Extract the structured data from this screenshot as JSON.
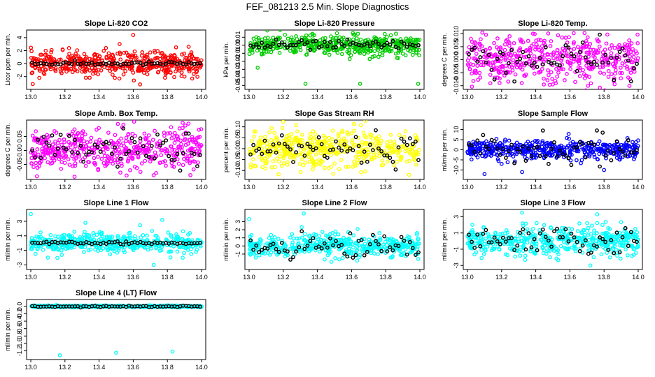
{
  "page_title": "FEF_081213  2.5 Min. Slope Diagnostics",
  "chart_data": [
    {
      "type": "scatter",
      "title": "Slope Li-820 CO2",
      "ylabel": "Licor ppm per min.",
      "color": "#ff0000",
      "xlim": [
        13.0,
        14.0
      ],
      "ylim": [
        -3.6,
        4.8
      ],
      "xticks": [
        "13.0",
        "13.2",
        "13.4",
        "13.6",
        "13.8",
        "14.0"
      ],
      "yticks": [
        {
          "v": -2,
          "label": "-2"
        },
        {
          "v": 0,
          "label": "0"
        },
        {
          "v": 2,
          "label": "2"
        },
        {
          "v": 4,
          "label": "4"
        }
      ],
      "spread": 0.9,
      "outliers": [
        {
          "x": 13.6,
          "y": 4.4
        },
        {
          "x": 13.52,
          "y": 3.0
        },
        {
          "x": 13.64,
          "y": -3.2
        },
        {
          "x": 13.05,
          "y": -2.2
        },
        {
          "x": 13.44,
          "y": 2.4
        }
      ],
      "black_spread": 0.15
    },
    {
      "type": "scatter",
      "title": "Slope Li-820 Pressure",
      "ylabel": "kPa per min.",
      "color": "#00cc00",
      "xlim": [
        13.0,
        14.0
      ],
      "ylim": [
        -0.052,
        0.016
      ],
      "xticks": [
        "13.0",
        "13.2",
        "13.4",
        "13.6",
        "13.8",
        "14.0"
      ],
      "yticks": [
        {
          "v": -0.05,
          "label": "-0.05"
        },
        {
          "v": -0.04,
          "label": "-0.04"
        },
        {
          "v": -0.03,
          "label": "-0.03"
        },
        {
          "v": -0.02,
          "label": "-0.02"
        },
        {
          "v": -0.01,
          "label": "-0.01"
        },
        {
          "v": 0,
          "label": "0.00"
        },
        {
          "v": 0.01,
          "label": "0.01"
        }
      ],
      "spread": 0.006,
      "outliers": [
        {
          "x": 13.33,
          "y": -0.048
        },
        {
          "x": 13.65,
          "y": -0.048
        },
        {
          "x": 13.99,
          "y": -0.048
        },
        {
          "x": 13.21,
          "y": 0.013
        },
        {
          "x": 13.05,
          "y": -0.028
        }
      ],
      "black_spread": 0.003
    },
    {
      "type": "scatter",
      "title": "Slope Li-820 Temp.",
      "ylabel": "degrees C per min.",
      "color": "#ff00ff",
      "xlim": [
        13.0,
        14.0
      ],
      "ylim": [
        -0.0105,
        0.0105
      ],
      "xticks": [
        "13.0",
        "13.2",
        "13.4",
        "13.6",
        "13.8",
        "14.0"
      ],
      "yticks": [
        {
          "v": -0.01,
          "label": "-0.010"
        },
        {
          "v": -0.005,
          "label": "-0.005"
        },
        {
          "v": 0,
          "label": "0.000"
        },
        {
          "v": 0.005,
          "label": "0.005"
        },
        {
          "v": 0.01,
          "label": "0.010"
        }
      ],
      "spread": 0.0045,
      "outliers": [],
      "black_spread": 0.0035
    },
    {
      "type": "scatter",
      "title": "Slope Amb. Box Temp.",
      "ylabel": "degrees C per min.",
      "color": "#ff00ff",
      "xlim": [
        13.0,
        14.0
      ],
      "ylim": [
        -0.095,
        0.1
      ],
      "xticks": [
        "13.0",
        "13.2",
        "13.4",
        "13.6",
        "13.8",
        "14.0"
      ],
      "yticks": [
        {
          "v": -0.05,
          "label": "-0.05"
        },
        {
          "v": 0,
          "label": "0.00"
        },
        {
          "v": 0.05,
          "label": "0.05"
        }
      ],
      "spread": 0.038,
      "outliers": [],
      "black_spread": 0.03
    },
    {
      "type": "scatter",
      "title": "Slope Gas Stream RH",
      "ylabel": "percent per min.",
      "color": "#ffff00",
      "xlim": [
        13.0,
        14.0
      ],
      "ylim": [
        -0.13,
        0.12
      ],
      "xticks": [
        "13.0",
        "13.2",
        "13.4",
        "13.6",
        "13.8",
        "14.0"
      ],
      "yticks": [
        {
          "v": -0.1,
          "label": "-0.10"
        },
        {
          "v": -0.05,
          "label": "-0.05"
        },
        {
          "v": 0,
          "label": "0.00"
        },
        {
          "v": 0.05,
          "label": "0.05"
        },
        {
          "v": 0.1,
          "label": "0.10"
        }
      ],
      "spread": 0.045,
      "outliers": [],
      "black_spread": 0.04
    },
    {
      "type": "scatter",
      "title": "Slope Sample Flow",
      "ylabel": "ml/min per min.",
      "color": "#0000ff",
      "xlim": [
        13.0,
        14.0
      ],
      "ylim": [
        -13.5,
        13.5
      ],
      "xticks": [
        "13.0",
        "13.2",
        "13.4",
        "13.6",
        "13.8",
        "14.0"
      ],
      "yticks": [
        {
          "v": -10,
          "label": "-10"
        },
        {
          "v": -5,
          "label": "-5"
        },
        {
          "v": 0,
          "label": "0"
        },
        {
          "v": 5,
          "label": "5"
        },
        {
          "v": 10,
          "label": "10"
        }
      ],
      "spread": 2.2,
      "outliers": [
        {
          "x": 13.1,
          "y": -12
        },
        {
          "x": 13.32,
          "y": -11
        },
        {
          "x": 13.8,
          "y": -10
        },
        {
          "x": 13.2,
          "y": -7
        }
      ],
      "black_spread": 4.0
    },
    {
      "type": "scatter",
      "title": "Slope Line 1 Flow",
      "ylabel": "ml/min per min.",
      "color": "#00ffff",
      "xlim": [
        13.0,
        14.0
      ],
      "ylim": [
        -3.3,
        4.3
      ],
      "xticks": [
        "13.0",
        "13.2",
        "13.4",
        "13.6",
        "13.8",
        "14.0"
      ],
      "yticks": [
        {
          "v": -3,
          "label": "-3"
        },
        {
          "v": -1,
          "label": "-1"
        },
        {
          "v": 1,
          "label": "1"
        },
        {
          "v": 3,
          "label": "3"
        }
      ],
      "spread": 0.65,
      "outliers": [
        {
          "x": 13.0,
          "y": 4.0
        },
        {
          "x": 13.32,
          "y": 2.8
        },
        {
          "x": 13.77,
          "y": 3.2
        },
        {
          "x": 13.72,
          "y": -3.0
        },
        {
          "x": 13.1,
          "y": -2.0
        }
      ],
      "black_spread": 0.1
    },
    {
      "type": "scatter",
      "title": "Slope Line 2 Flow",
      "ylabel": "ml/min per min.",
      "color": "#00ffff",
      "xlim": [
        13.0,
        14.0
      ],
      "ylim": [
        -2.6,
        4.2
      ],
      "xticks": [
        "13.0",
        "13.2",
        "13.4",
        "13.6",
        "13.8",
        "14.0"
      ],
      "yticks": [
        {
          "v": -1,
          "label": "-1"
        },
        {
          "v": 0,
          "label": "0"
        },
        {
          "v": 1,
          "label": "1"
        },
        {
          "v": 2,
          "label": "2"
        },
        {
          "v": 3,
          "label": "3"
        }
      ],
      "spread": 0.7,
      "outliers": [
        {
          "x": 13.0,
          "y": 3.3
        },
        {
          "x": 13.32,
          "y": 4.0
        }
      ],
      "black_spread": 0.8
    },
    {
      "type": "scatter",
      "title": "Slope Line 3 Flow",
      "ylabel": "ml/min per min.",
      "color": "#00ffff",
      "xlim": [
        13.0,
        14.0
      ],
      "ylim": [
        -3.2,
        3.6
      ],
      "xticks": [
        "13.0",
        "13.2",
        "13.4",
        "13.6",
        "13.8",
        "14.0"
      ],
      "yticks": [
        {
          "v": -3,
          "label": "-3"
        },
        {
          "v": -1,
          "label": "-1"
        },
        {
          "v": 1,
          "label": "1"
        },
        {
          "v": 3,
          "label": "3"
        }
      ],
      "spread": 0.85,
      "outliers": [
        {
          "x": 13.32,
          "y": 3.5
        },
        {
          "x": 13.76,
          "y": 3.3
        },
        {
          "x": 13.72,
          "y": -3.0
        }
      ],
      "black_spread": 0.8
    },
    {
      "type": "scatter",
      "title": "Slope Line 4 (LT) Flow",
      "ylabel": "ml/min per min.",
      "color": "#00ffff",
      "xlim": [
        13.0,
        14.0
      ],
      "ylim": [
        -1.37,
        0.12
      ],
      "xticks": [
        "13.0",
        "13.2",
        "13.4",
        "13.6",
        "13.8",
        "14.0"
      ],
      "yticks": [
        {
          "v": -1.2,
          "label": "-1.2"
        },
        {
          "v": -1.0,
          "label": "-1.0"
        },
        {
          "v": -0.8,
          "label": "-0.8"
        },
        {
          "v": -0.6,
          "label": "-0.6"
        },
        {
          "v": -0.4,
          "label": "-0.4"
        },
        {
          "v": -0.2,
          "label": "-0.2"
        },
        {
          "v": 0,
          "label": "0.0"
        }
      ],
      "spread": 0.012,
      "outliers": [
        {
          "x": 13.5,
          "y": -1.25
        },
        {
          "x": 13.83,
          "y": -1.22
        },
        {
          "x": 13.17,
          "y": -1.32
        }
      ],
      "black_spread": 0.01
    }
  ]
}
